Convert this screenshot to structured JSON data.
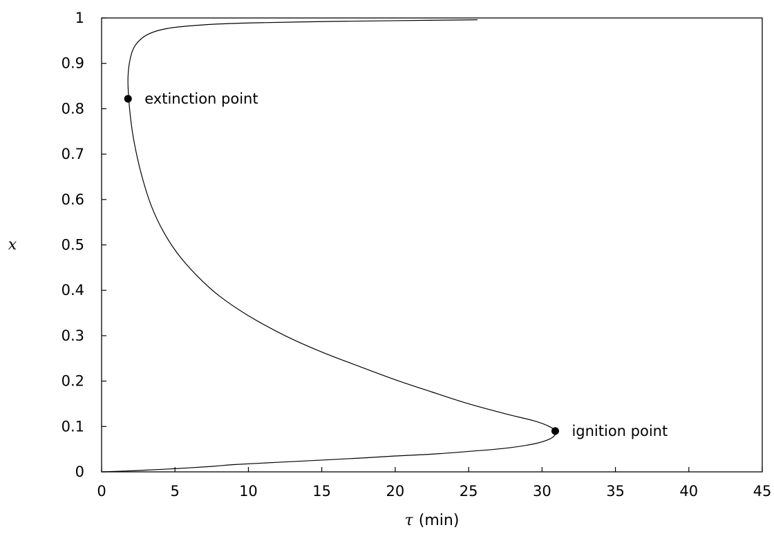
{
  "chart_data": {
    "type": "line",
    "title": "",
    "xlabel": "(min)",
    "xlabel_symbol": "τ",
    "ylabel": "x",
    "xlim": [
      0,
      45
    ],
    "ylim": [
      0,
      1
    ],
    "x_ticks": [
      "0",
      "5",
      "10",
      "15",
      "20",
      "25",
      "30",
      "35",
      "40",
      "45"
    ],
    "y_ticks": [
      "0",
      "0.1",
      "0.2",
      "0.3",
      "0.4",
      "0.5",
      "0.6",
      "0.7",
      "0.8",
      "0.9",
      "1"
    ],
    "grid": false,
    "series": [
      {
        "points": [
          [
            0,
            0
          ],
          [
            2.5,
            0.003
          ],
          [
            5,
            0.007
          ],
          [
            7.5,
            0.012
          ],
          [
            9,
            0.016
          ],
          [
            12,
            0.021
          ],
          [
            15,
            0.026
          ],
          [
            18,
            0.031
          ],
          [
            20,
            0.035
          ],
          [
            22.5,
            0.039
          ],
          [
            25,
            0.045
          ],
          [
            27.5,
            0.052
          ],
          [
            29.5,
            0.062
          ],
          [
            30.5,
            0.072
          ],
          [
            30.9,
            0.082
          ],
          [
            30.9,
            0.09
          ],
          [
            30.5,
            0.1
          ],
          [
            29.5,
            0.112
          ],
          [
            27.5,
            0.128
          ],
          [
            25,
            0.15
          ],
          [
            22.5,
            0.176
          ],
          [
            20,
            0.203
          ],
          [
            17.5,
            0.233
          ],
          [
            15,
            0.264
          ],
          [
            12.5,
            0.3
          ],
          [
            10,
            0.344
          ],
          [
            8,
            0.388
          ],
          [
            6.5,
            0.432
          ],
          [
            5.2,
            0.48
          ],
          [
            4.2,
            0.53
          ],
          [
            3.4,
            0.585
          ],
          [
            2.8,
            0.645
          ],
          [
            2.35,
            0.705
          ],
          [
            2.05,
            0.76
          ],
          [
            1.85,
            0.822
          ],
          [
            1.8,
            0.87
          ],
          [
            1.95,
            0.91
          ],
          [
            2.3,
            0.94
          ],
          [
            3.1,
            0.963
          ],
          [
            4.5,
            0.977
          ],
          [
            7,
            0.985
          ],
          [
            10,
            0.989
          ],
          [
            15,
            0.992
          ],
          [
            20,
            0.994
          ],
          [
            25.6,
            0.996
          ]
        ]
      }
    ],
    "annotations": [
      {
        "label": "extinction point",
        "x": 1.8,
        "y": 0.822
      },
      {
        "label": "ignition point",
        "x": 30.9,
        "y": 0.09
      }
    ]
  }
}
